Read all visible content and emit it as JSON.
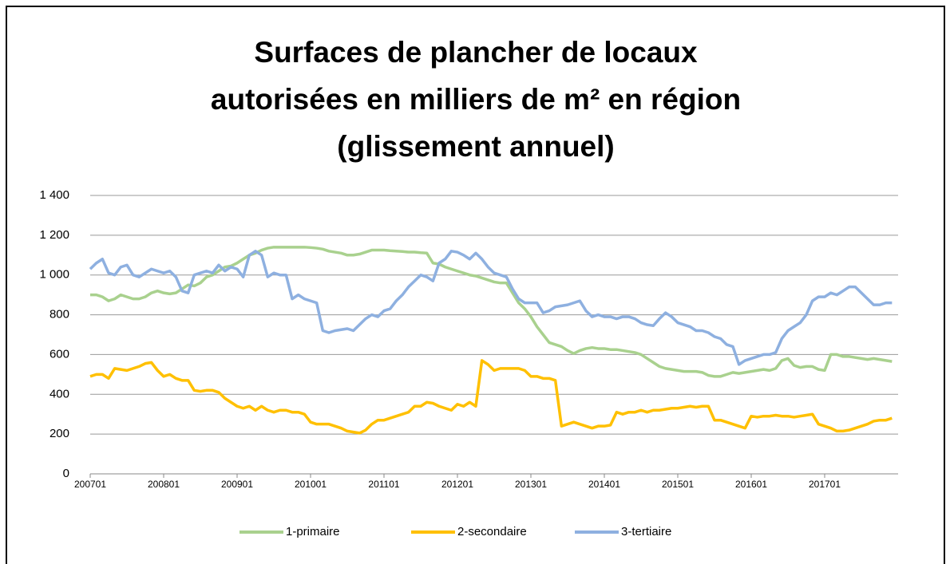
{
  "chart_data": {
    "type": "line",
    "title": [
      "Surfaces de plancher de locaux",
      "autorisées en milliers de m² en région",
      "(glissement annuel)"
    ],
    "categories": [
      "200701",
      null,
      null,
      null,
      null,
      null,
      null,
      null,
      null,
      null,
      null,
      null,
      "200801",
      null,
      null,
      null,
      null,
      null,
      null,
      null,
      null,
      null,
      null,
      null,
      "200901",
      null,
      null,
      null,
      null,
      null,
      null,
      null,
      null,
      null,
      null,
      null,
      "201001",
      null,
      null,
      null,
      null,
      null,
      null,
      null,
      null,
      null,
      null,
      null,
      "201101",
      null,
      null,
      null,
      null,
      null,
      null,
      null,
      null,
      null,
      null,
      null,
      "201201",
      null,
      null,
      null,
      null,
      null,
      null,
      null,
      null,
      null,
      null,
      null,
      "201301",
      null,
      null,
      null,
      null,
      null,
      null,
      null,
      null,
      null,
      null,
      null,
      "201401",
      null,
      null,
      null,
      null,
      null,
      null,
      null,
      null,
      null,
      null,
      null,
      "201501",
      null,
      null,
      null,
      null,
      null,
      null,
      null,
      null,
      null,
      null,
      null,
      "201601",
      null,
      null,
      null,
      null,
      null,
      null,
      null,
      null,
      null,
      null,
      null,
      "201701",
      null,
      null,
      null,
      null,
      null,
      null,
      null,
      null,
      null,
      null,
      null
    ],
    "series": [
      {
        "name": "1-primaire",
        "color": "#a9d18e",
        "values": [
          900,
          900,
          890,
          870,
          880,
          900,
          890,
          880,
          880,
          890,
          910,
          920,
          910,
          905,
          910,
          930,
          950,
          945,
          960,
          990,
          1000,
          1020,
          1040,
          1045,
          1060,
          1080,
          1100,
          1110,
          1125,
          1135,
          1140,
          1140,
          1140,
          1140,
          1140,
          1140,
          1138,
          1135,
          1130,
          1120,
          1115,
          1110,
          1100,
          1100,
          1105,
          1115,
          1125,
          1125,
          1125,
          1122,
          1120,
          1118,
          1115,
          1115,
          1112,
          1110,
          1060,
          1055,
          1040,
          1030,
          1020,
          1010,
          1000,
          995,
          985,
          975,
          965,
          960,
          960,
          910,
          860,
          830,
          790,
          740,
          700,
          660,
          650,
          640,
          620,
          605,
          620,
          630,
          635,
          630,
          630,
          625,
          625,
          620,
          615,
          610,
          600,
          580,
          560,
          540,
          530,
          525,
          520,
          515,
          515,
          515,
          510,
          495,
          490,
          490,
          500,
          510,
          505,
          510,
          515,
          520,
          525,
          520,
          530,
          570,
          580,
          545,
          535,
          540,
          540,
          525,
          520,
          600,
          600,
          590,
          590,
          585,
          580,
          575,
          580,
          575,
          570,
          565
        ]
      },
      {
        "name": "2-secondaire",
        "color": "#ffc000",
        "values": [
          490,
          500,
          500,
          480,
          530,
          525,
          520,
          530,
          540,
          555,
          560,
          520,
          490,
          500,
          480,
          470,
          470,
          420,
          415,
          420,
          420,
          410,
          380,
          360,
          340,
          330,
          340,
          320,
          340,
          320,
          310,
          320,
          320,
          310,
          310,
          300,
          260,
          250,
          250,
          250,
          240,
          230,
          215,
          210,
          205,
          220,
          250,
          270,
          270,
          280,
          290,
          300,
          310,
          340,
          340,
          360,
          355,
          340,
          330,
          320,
          350,
          340,
          360,
          340,
          570,
          550,
          520,
          530,
          530,
          530,
          530,
          520,
          490,
          490,
          480,
          480,
          470,
          240,
          250,
          260,
          250,
          240,
          230,
          240,
          240,
          245,
          310,
          300,
          310,
          310,
          320,
          310,
          320,
          320,
          325,
          330,
          330,
          335,
          340,
          335,
          340,
          340,
          270,
          270,
          260,
          250,
          240,
          230,
          290,
          285,
          290,
          290,
          295,
          290,
          290,
          285,
          290,
          295,
          300,
          250,
          240,
          230,
          215,
          215,
          220,
          230,
          240,
          250,
          265,
          270,
          270,
          280
        ]
      },
      {
        "name": "3-tertiaire",
        "color": "#8eb0e0",
        "values": [
          1030,
          1060,
          1080,
          1010,
          1000,
          1040,
          1050,
          1000,
          990,
          1010,
          1030,
          1020,
          1010,
          1020,
          990,
          920,
          910,
          1000,
          1010,
          1020,
          1010,
          1050,
          1020,
          1040,
          1030,
          990,
          1100,
          1120,
          1100,
          990,
          1010,
          1000,
          1000,
          880,
          900,
          880,
          870,
          860,
          720,
          710,
          720,
          725,
          730,
          720,
          750,
          780,
          800,
          790,
          820,
          830,
          870,
          900,
          940,
          970,
          1000,
          990,
          970,
          1060,
          1080,
          1120,
          1115,
          1100,
          1080,
          1110,
          1080,
          1040,
          1010,
          1000,
          990,
          930,
          880,
          860,
          860,
          860,
          810,
          820,
          840,
          845,
          850,
          860,
          870,
          820,
          790,
          800,
          790,
          790,
          780,
          790,
          790,
          780,
          760,
          750,
          745,
          780,
          810,
          790,
          760,
          750,
          740,
          720,
          720,
          710,
          690,
          680,
          650,
          640,
          550,
          570,
          580,
          590,
          600,
          600,
          610,
          680,
          720,
          740,
          760,
          800,
          870,
          890,
          890,
          910,
          900,
          920,
          940,
          940,
          910,
          880,
          850,
          850,
          860,
          860
        ]
      }
    ],
    "ylim": [
      0,
      1400
    ],
    "yticks": [
      0,
      200,
      400,
      600,
      800,
      {
        "value": 1000,
        "label": "1 000"
      },
      {
        "value": 1200,
        "label": "1 200"
      },
      {
        "value": 1400,
        "label": "1 400"
      }
    ],
    "grid": true,
    "legend": "bottom"
  }
}
